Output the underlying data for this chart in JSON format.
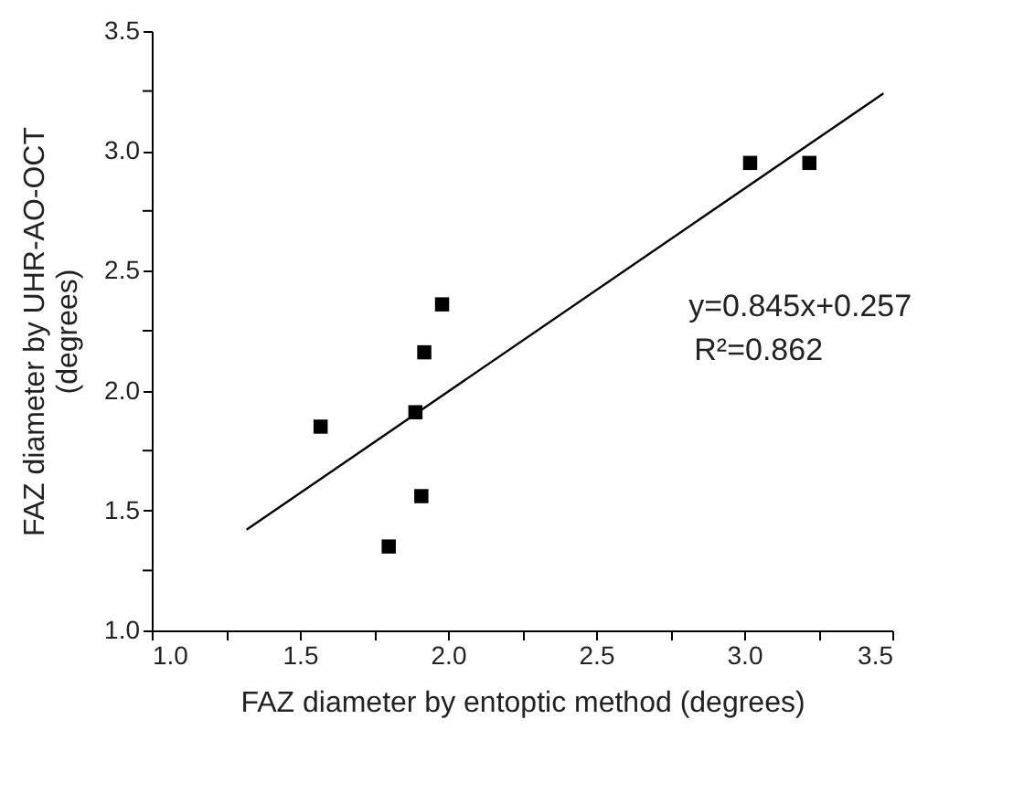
{
  "chart_data": {
    "type": "scatter",
    "xlabel": "FAZ diameter by entoptic method (degrees)",
    "ylabel": "FAZ diameter by UHR-AO-OCT\n(degrees)",
    "series": [
      {
        "color": "#000000",
        "marker": "square",
        "x": [
          1.57,
          1.8,
          1.89,
          1.91,
          1.92,
          1.98,
          3.02,
          3.22
        ],
        "values": [
          1.85,
          1.35,
          1.91,
          1.56,
          2.16,
          2.36,
          2.95,
          2.95
        ]
      },
      {
        "type": "line",
        "color": "#000000",
        "line_style": "solid",
        "x": [
          1.32,
          3.47
        ],
        "values": [
          1.42,
          3.24
        ]
      }
    ],
    "xlim": [
      1.0,
      3.5
    ],
    "ylim": [
      1.0,
      3.5
    ],
    "xticks": [
      {
        "value": 1.0,
        "label": "1.0"
      },
      {
        "value": 1.25,
        "label": null
      },
      3.5,
      {
        "value": 1.5,
        "label": "1.5"
      },
      {
        "value": 1.75,
        "label": null
      },
      {
        "value": 2.0,
        "label": "2.0"
      },
      {
        "value": 2.25,
        "label": null
      },
      {
        "value": 2.5,
        "label": "2.5"
      },
      {
        "value": 2.75,
        "label": null
      },
      {
        "value": 3.0,
        "label": "3.0"
      },
      {
        "value": 3.25,
        "label": null
      }
    ],
    "yticks": [
      {
        "value": 1.0,
        "label": "1.0"
      },
      {
        "value": 1.25,
        "label": null
      },
      {
        "value": 1.5,
        "label": "1.5"
      },
      {
        "value": 1.75,
        "label": null
      },
      {
        "value": 2.0,
        "label": "2.0"
      },
      {
        "value": 2.25,
        "label": null
      },
      {
        "value": 2.5,
        "label": "2.5"
      },
      {
        "value": 2.75,
        "label": null
      },
      {
        "value": 3.0,
        "label": "3.0"
      },
      {
        "value": 3.25,
        "label": null
      },
      3.5
    ],
    "annotations": [
      "y=0.845x+0.257",
      "R²=0.862"
    ],
    "grid": false
  }
}
